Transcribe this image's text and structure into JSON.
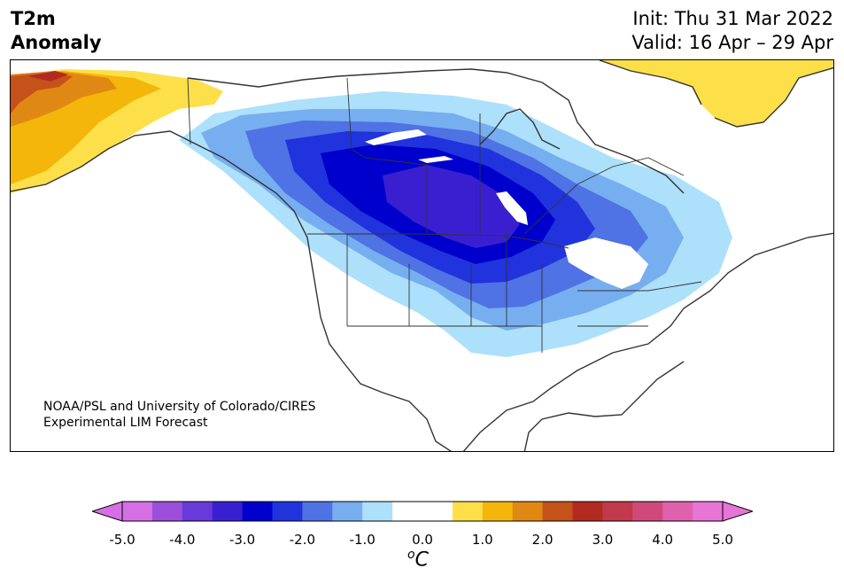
{
  "header": {
    "title_line1": "T2m",
    "title_line2": "Anomaly",
    "init": "Init: Thu 31 Mar 2022",
    "valid": "Valid: 16 Apr – 29 Apr"
  },
  "map": {
    "credit_line1": "NOAA/PSL and University of Colorado/CIRES",
    "credit_line2": "Experimental LIM Forecast",
    "region": "North America"
  },
  "colorbar": {
    "unit_base": "C",
    "unit_sup": "o",
    "tick_labels": [
      "-5.0",
      "-4.0",
      "-3.0",
      "-2.0",
      "-1.0",
      "0.0",
      "1.0",
      "2.0",
      "3.0",
      "4.0",
      "5.0"
    ],
    "colors": [
      "#d56fe6",
      "#9b4fdb",
      "#6a39d9",
      "#3a1fd1",
      "#0000cd",
      "#2133dd",
      "#4f72e4",
      "#76aef0",
      "#ade0fa",
      "#ffffff",
      "#ffffff",
      "#fde049",
      "#f4b60a",
      "#e08814",
      "#c55219",
      "#b32a23",
      "#c23a4b",
      "#cf4a7b",
      "#df60ad",
      "#e675d6"
    ]
  }
}
